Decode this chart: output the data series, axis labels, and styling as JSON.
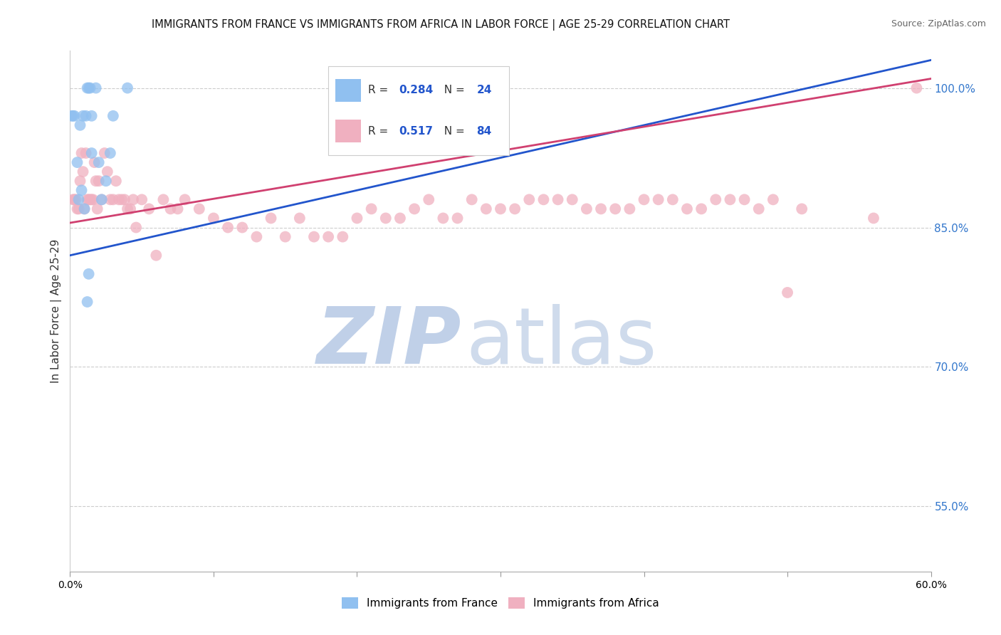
{
  "title": "IMMIGRANTS FROM FRANCE VS IMMIGRANTS FROM AFRICA IN LABOR FORCE | AGE 25-29 CORRELATION CHART",
  "source": "Source: ZipAtlas.com",
  "ylabel": "In Labor Force | Age 25-29",
  "y_tick_labels": [
    "100.0%",
    "85.0%",
    "70.0%",
    "55.0%"
  ],
  "y_tick_values": [
    1.0,
    0.85,
    0.7,
    0.55
  ],
  "x_range": [
    0.0,
    0.6
  ],
  "y_range": [
    0.48,
    1.04
  ],
  "R_france": 0.284,
  "N_france": 24,
  "R_africa": 0.517,
  "N_africa": 84,
  "color_france": "#90c0f0",
  "color_africa": "#f0b0c0",
  "line_color_france": "#2255cc",
  "line_color_africa": "#d04070",
  "legend_R_color": "#2255cc",
  "watermark_zip_color": "#c0d0e8",
  "watermark_atlas_color": "#a8bedd",
  "france_x": [
    0.001,
    0.002,
    0.003,
    0.005,
    0.006,
    0.007,
    0.008,
    0.009,
    0.01,
    0.011,
    0.012,
    0.013,
    0.014,
    0.015,
    0.018,
    0.02,
    0.022,
    0.025,
    0.028,
    0.03,
    0.012,
    0.013,
    0.015,
    0.04
  ],
  "france_y": [
    0.97,
    0.97,
    0.97,
    0.92,
    0.88,
    0.96,
    0.89,
    0.97,
    0.87,
    0.97,
    1.0,
    1.0,
    1.0,
    0.97,
    1.0,
    0.92,
    0.88,
    0.9,
    0.93,
    0.97,
    0.77,
    0.8,
    0.93,
    1.0
  ],
  "africa_x": [
    0.002,
    0.003,
    0.004,
    0.005,
    0.006,
    0.007,
    0.008,
    0.009,
    0.01,
    0.011,
    0.012,
    0.013,
    0.014,
    0.015,
    0.016,
    0.017,
    0.018,
    0.019,
    0.02,
    0.022,
    0.024,
    0.026,
    0.028,
    0.03,
    0.032,
    0.034,
    0.036,
    0.038,
    0.04,
    0.042,
    0.044,
    0.046,
    0.05,
    0.055,
    0.06,
    0.065,
    0.07,
    0.075,
    0.08,
    0.09,
    0.1,
    0.11,
    0.12,
    0.13,
    0.14,
    0.15,
    0.16,
    0.17,
    0.18,
    0.19,
    0.2,
    0.21,
    0.22,
    0.23,
    0.24,
    0.25,
    0.26,
    0.27,
    0.28,
    0.29,
    0.3,
    0.31,
    0.32,
    0.33,
    0.34,
    0.35,
    0.36,
    0.37,
    0.38,
    0.39,
    0.4,
    0.41,
    0.42,
    0.43,
    0.44,
    0.45,
    0.46,
    0.47,
    0.48,
    0.49,
    0.5,
    0.51,
    0.56,
    0.59
  ],
  "africa_y": [
    0.88,
    0.88,
    0.88,
    0.87,
    0.87,
    0.9,
    0.93,
    0.91,
    0.87,
    0.93,
    0.88,
    0.88,
    0.88,
    0.88,
    0.88,
    0.92,
    0.9,
    0.87,
    0.9,
    0.88,
    0.93,
    0.91,
    0.88,
    0.88,
    0.9,
    0.88,
    0.88,
    0.88,
    0.87,
    0.87,
    0.88,
    0.85,
    0.88,
    0.87,
    0.82,
    0.88,
    0.87,
    0.87,
    0.88,
    0.87,
    0.86,
    0.85,
    0.85,
    0.84,
    0.86,
    0.84,
    0.86,
    0.84,
    0.84,
    0.84,
    0.86,
    0.87,
    0.86,
    0.86,
    0.87,
    0.88,
    0.86,
    0.86,
    0.88,
    0.87,
    0.87,
    0.87,
    0.88,
    0.88,
    0.88,
    0.88,
    0.87,
    0.87,
    0.87,
    0.87,
    0.88,
    0.88,
    0.88,
    0.87,
    0.87,
    0.88,
    0.88,
    0.88,
    0.87,
    0.88,
    0.78,
    0.87,
    0.86,
    1.0
  ],
  "france_line_x0": 0.0,
  "france_line_y0": 0.82,
  "france_line_x1": 0.6,
  "france_line_y1": 1.03,
  "africa_line_x0": 0.0,
  "africa_line_y0": 0.855,
  "africa_line_x1": 0.6,
  "africa_line_y1": 1.01
}
